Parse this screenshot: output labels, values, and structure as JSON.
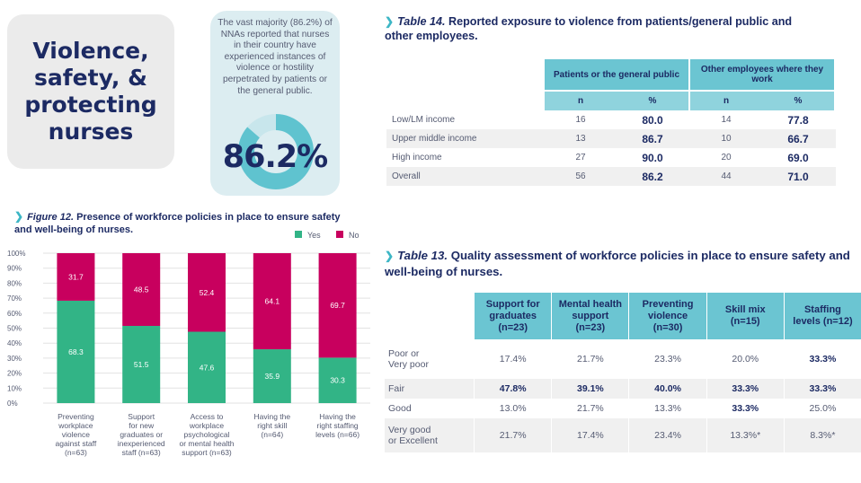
{
  "title": "Violence, safety, & protecting nurses",
  "stat": {
    "text": "The vast majority (86.2%) of NNAs reported that nurses in their country have experienced instances of violence or hostility perpetrated by patients or the general public.",
    "value": "86.2%",
    "percent": 86.2
  },
  "table14": {
    "prefix": "Table 14.",
    "title": "Reported exposure to violence from patients/general public and other employees.",
    "group1": "Patients or the general public",
    "group2": "Other employees where they work",
    "sub": [
      "n",
      "%",
      "n",
      "%"
    ],
    "rows": [
      {
        "label": "Low/LM income",
        "n1": "16",
        "p1": "80.0",
        "n2": "14",
        "p2": "77.8"
      },
      {
        "label": "Upper middle income",
        "n1": "13",
        "p1": "86.7",
        "n2": "10",
        "p2": "66.7"
      },
      {
        "label": "High income",
        "n1": "27",
        "p1": "90.0",
        "n2": "20",
        "p2": "69.0"
      },
      {
        "label": "Overall",
        "n1": "56",
        "p1": "86.2",
        "n2": "44",
        "p2": "71.0"
      }
    ]
  },
  "figure12": {
    "prefix": "Figure 12.",
    "title": "Presence of workforce policies in place to ensure safety and well-being of nurses."
  },
  "chart_data": {
    "type": "bar",
    "stacked": true,
    "categories": [
      "Preventing workplace violence against staff (n=63)",
      "Support for new graduates or inexperienced staff (n=63)",
      "Access to workplace psychological or mental health support (n=63)",
      "Having the right skill (n=64)",
      "Having the right staffing levels (n=66)"
    ],
    "category_lines": [
      [
        "Preventing",
        "workplace",
        "violence",
        "against staff",
        "(n=63)"
      ],
      [
        "Support",
        "for new",
        "graduates or",
        "inexperienced",
        "staff (n=63)"
      ],
      [
        "Access to",
        "workplace",
        "psychological",
        "or mental health",
        "support (n=63)"
      ],
      [
        "Having the",
        "right skill",
        "(n=64)"
      ],
      [
        "Having the",
        "right staffing",
        "levels (n=66)"
      ]
    ],
    "series": [
      {
        "name": "Yes",
        "color": "#32b486",
        "values": [
          68.3,
          51.5,
          47.6,
          35.9,
          30.3
        ]
      },
      {
        "name": "No",
        "color": "#c8005e",
        "values": [
          31.7,
          48.5,
          52.4,
          64.1,
          69.7
        ]
      }
    ],
    "yticks": [
      "0%",
      "10%",
      "20%",
      "30%",
      "40%",
      "50%",
      "60%",
      "70%",
      "80%",
      "90%",
      "100%"
    ],
    "ylim": [
      0,
      100
    ],
    "legend_position": "top-right",
    "grid": true
  },
  "table13": {
    "prefix": "Table 13.",
    "title": "Quality assessment of workforce policies in place to ensure safety and well-being of nurses.",
    "headers": [
      "Support for graduates (n=23)",
      "Mental health support (n=23)",
      "Preventing violence (n=30)",
      "Skill mix (n=15)",
      "Staffing levels (n=12)"
    ],
    "header_lines": [
      [
        "Support for",
        "graduates",
        "(n=23)"
      ],
      [
        "Mental health",
        "support",
        "(n=23)"
      ],
      [
        "Preventing",
        "violence",
        "(n=30)"
      ],
      [
        "Skill mix",
        "(n=15)"
      ],
      [
        "Staffing",
        "levels (n=12)"
      ]
    ],
    "rows": [
      {
        "label": "Poor or Very poor",
        "label_lines": [
          "Poor or",
          "Very poor"
        ],
        "values": [
          "17.4%",
          "21.7%",
          "23.3%",
          "20.0%",
          "33.3%"
        ],
        "bold": [
          false,
          false,
          false,
          false,
          true
        ]
      },
      {
        "label": "Fair",
        "label_lines": [
          "Fair"
        ],
        "values": [
          "47.8%",
          "39.1%",
          "40.0%",
          "33.3%",
          "33.3%"
        ],
        "bold": [
          true,
          true,
          true,
          true,
          true
        ]
      },
      {
        "label": "Good",
        "label_lines": [
          "Good"
        ],
        "values": [
          "13.0%",
          "21.7%",
          "13.3%",
          "33.3%",
          "25.0%"
        ],
        "bold": [
          false,
          false,
          false,
          true,
          false
        ]
      },
      {
        "label": "Very good or Excellent",
        "label_lines": [
          "Very good",
          "or Excellent"
        ],
        "values": [
          "21.7%",
          "17.4%",
          "23.4%",
          "13.3%*",
          "8.3%*"
        ],
        "bold": [
          false,
          false,
          false,
          false,
          false
        ]
      }
    ]
  },
  "colors": {
    "navy": "#1c2a63",
    "teal": "#6bc5d2",
    "yes": "#32b486",
    "no": "#c8005e"
  }
}
